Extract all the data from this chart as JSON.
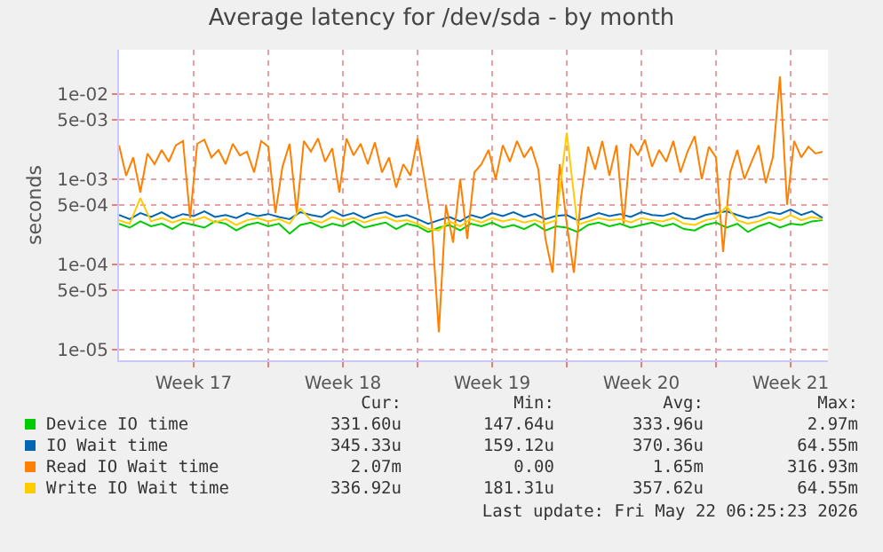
{
  "chart_data": {
    "type": "line",
    "title": "Average latency for /dev/sda - by month",
    "ylabel": "seconds",
    "log": "y",
    "grid": true,
    "legend": "bottom",
    "line_style": "solid",
    "marker": "none",
    "xlim": [
      "2026-04-20T00:00",
      "2026-05-23T06:00"
    ],
    "xticks": [
      {
        "value": "2026-04-23T12:00",
        "label": "Week 17"
      },
      {
        "value": "2026-04-30T12:00",
        "label": "Week 18"
      },
      {
        "value": "2026-05-07T12:00",
        "label": "Week 19"
      },
      {
        "value": "2026-05-14T12:00",
        "label": "Week 20"
      },
      {
        "value": "2026-05-21T12:00",
        "label": "Week 21"
      },
      {
        "value": "2026-04-27",
        "label": null
      },
      {
        "value": "2026-05-04",
        "label": null
      },
      {
        "value": "2026-05-11",
        "label": null
      },
      {
        "value": "2026-05-18",
        "label": null
      }
    ],
    "ylim": [
      7.5e-06,
      0.033
    ],
    "yticks": [
      {
        "value": 0.01,
        "label": "1e-02"
      },
      {
        "value": 0.005,
        "label": "5e-03"
      },
      {
        "value": 0.001,
        "label": "1e-03"
      },
      {
        "value": 0.0005,
        "label": "5e-04"
      },
      {
        "value": 0.0001,
        "label": "1e-04"
      },
      {
        "value": 5e-05,
        "label": "5e-05"
      },
      {
        "value": 1e-05,
        "label": "1e-05"
      }
    ],
    "x": [
      "2026-04-20T00:00",
      "2026-04-20T12:00",
      "2026-04-21T00:00",
      "2026-04-21T12:00",
      "2026-04-22T00:00",
      "2026-04-22T12:00",
      "2026-04-23T00:00",
      "2026-04-23T12:00",
      "2026-04-24T00:00",
      "2026-04-24T12:00",
      "2026-04-25T00:00",
      "2026-04-25T12:00",
      "2026-04-26T00:00",
      "2026-04-26T12:00",
      "2026-04-27T00:00",
      "2026-04-27T12:00",
      "2026-04-28T00:00",
      "2026-04-28T12:00",
      "2026-04-29T00:00",
      "2026-04-29T12:00",
      "2026-04-30T00:00",
      "2026-04-30T12:00",
      "2026-05-01T00:00",
      "2026-05-01T12:00",
      "2026-05-02T00:00",
      "2026-05-02T12:00",
      "2026-05-03T00:00",
      "2026-05-03T12:00",
      "2026-05-04T00:00",
      "2026-05-04T12:00",
      "2026-05-05T00:00",
      "2026-05-05T12:00",
      "2026-05-06T00:00",
      "2026-05-06T12:00",
      "2026-05-07T00:00",
      "2026-05-07T12:00",
      "2026-05-08T00:00",
      "2026-05-08T12:00",
      "2026-05-09T00:00",
      "2026-05-09T12:00",
      "2026-05-10T00:00",
      "2026-05-10T12:00",
      "2026-05-11T00:00",
      "2026-05-11T12:00",
      "2026-05-12T00:00",
      "2026-05-12T12:00",
      "2026-05-13T00:00",
      "2026-05-13T12:00",
      "2026-05-14T00:00",
      "2026-05-14T12:00",
      "2026-05-15T00:00",
      "2026-05-15T12:00",
      "2026-05-16T00:00",
      "2026-05-16T12:00",
      "2026-05-17T00:00",
      "2026-05-17T12:00",
      "2026-05-18T00:00",
      "2026-05-18T12:00",
      "2026-05-19T00:00",
      "2026-05-19T12:00",
      "2026-05-20T00:00",
      "2026-05-20T12:00",
      "2026-05-21T00:00",
      "2026-05-21T12:00",
      "2026-05-22T00:00",
      "2026-05-22T12:00",
      "2026-05-23T00:00"
    ],
    "series": [
      {
        "name": "Device IO time",
        "color": "#00cc00",
        "values": [
          0.0003,
          0.00027,
          0.00032,
          0.00028,
          0.0003,
          0.00026,
          0.00031,
          0.00029,
          0.00027,
          0.00032,
          0.0003,
          0.00025,
          0.00029,
          0.00031,
          0.00028,
          0.0003,
          0.00023,
          0.00029,
          0.00031,
          0.00027,
          0.0003,
          0.00028,
          0.00032,
          0.00027,
          0.00029,
          0.00031,
          0.00026,
          0.0003,
          0.00028,
          0.00024,
          0.00027,
          0.00029,
          0.00025,
          0.0003,
          0.00028,
          0.00031,
          0.00027,
          0.00029,
          0.00026,
          0.0003,
          0.00025,
          0.00028,
          0.00027,
          0.00024,
          0.00029,
          0.00031,
          0.00028,
          0.0003,
          0.00027,
          0.00029,
          0.00031,
          0.00028,
          0.0003,
          0.00026,
          0.00025,
          0.00029,
          0.00031,
          0.00027,
          0.0003,
          0.00024,
          0.00028,
          0.00031,
          0.00027,
          0.0003,
          0.00029,
          0.00032,
          0.00033
        ]
      },
      {
        "name": "IO Wait time",
        "color": "#0066b3",
        "values": [
          0.00038,
          0.00034,
          0.0004,
          0.00036,
          0.00041,
          0.00035,
          0.00039,
          0.00037,
          0.00042,
          0.00036,
          0.00038,
          0.00035,
          0.0004,
          0.00037,
          0.00039,
          0.00036,
          0.00034,
          0.00041,
          0.00038,
          0.00036,
          0.00043,
          0.00037,
          0.0004,
          0.00035,
          0.00039,
          0.00041,
          0.00036,
          0.00038,
          0.00034,
          0.0003,
          0.00033,
          0.00036,
          0.00032,
          0.00038,
          0.00035,
          0.0004,
          0.00037,
          0.00041,
          0.00036,
          0.00039,
          0.00034,
          0.00037,
          0.00038,
          0.00033,
          0.00036,
          0.0004,
          0.00037,
          0.00039,
          0.00036,
          0.00041,
          0.00038,
          0.00037,
          0.0004,
          0.00035,
          0.00034,
          0.00038,
          0.0004,
          0.00042,
          0.00038,
          0.00035,
          0.00037,
          0.00041,
          0.00039,
          0.00044,
          0.00038,
          0.00042,
          0.00035
        ]
      },
      {
        "name": "Read IO Wait time",
        "color": "#ff8000",
        "x": [
          "2026-04-20T00:00",
          "2026-04-20T08:00",
          "2026-04-20T16:00",
          "2026-04-21T00:00",
          "2026-04-21T08:00",
          "2026-04-21T16:00",
          "2026-04-22T00:00",
          "2026-04-22T08:00",
          "2026-04-22T16:00",
          "2026-04-23T00:00",
          "2026-04-23T08:00",
          "2026-04-23T16:00",
          "2026-04-24T00:00",
          "2026-04-24T08:00",
          "2026-04-24T16:00",
          "2026-04-25T00:00",
          "2026-04-25T08:00",
          "2026-04-25T16:00",
          "2026-04-26T00:00",
          "2026-04-26T08:00",
          "2026-04-26T16:00",
          "2026-04-27T00:00",
          "2026-04-27T08:00",
          "2026-04-27T16:00",
          "2026-04-28T00:00",
          "2026-04-28T08:00",
          "2026-04-28T16:00",
          "2026-04-29T00:00",
          "2026-04-29T08:00",
          "2026-04-29T16:00",
          "2026-04-30T00:00",
          "2026-04-30T08:00",
          "2026-04-30T16:00",
          "2026-05-01T00:00",
          "2026-05-01T08:00",
          "2026-05-01T16:00",
          "2026-05-02T00:00",
          "2026-05-02T08:00",
          "2026-05-02T16:00",
          "2026-05-03T00:00",
          "2026-05-03T08:00",
          "2026-05-03T16:00",
          "2026-05-04T00:00",
          "2026-05-04T08:00",
          "2026-05-04T16:00",
          "2026-05-05T00:00",
          "2026-05-05T08:00",
          "2026-05-05T16:00",
          "2026-05-06T00:00",
          "2026-05-06T08:00",
          "2026-05-06T16:00",
          "2026-05-07T00:00",
          "2026-05-07T08:00",
          "2026-05-07T16:00",
          "2026-05-08T00:00",
          "2026-05-08T08:00",
          "2026-05-08T16:00",
          "2026-05-09T00:00",
          "2026-05-09T08:00",
          "2026-05-09T16:00",
          "2026-05-10T00:00",
          "2026-05-10T08:00",
          "2026-05-10T16:00",
          "2026-05-11T00:00",
          "2026-05-11T08:00",
          "2026-05-11T16:00",
          "2026-05-12T00:00",
          "2026-05-12T08:00",
          "2026-05-12T16:00",
          "2026-05-13T00:00",
          "2026-05-13T08:00",
          "2026-05-13T16:00",
          "2026-05-14T00:00",
          "2026-05-14T08:00",
          "2026-05-14T16:00",
          "2026-05-15T00:00",
          "2026-05-15T08:00",
          "2026-05-15T16:00",
          "2026-05-16T00:00",
          "2026-05-16T08:00",
          "2026-05-16T16:00",
          "2026-05-17T00:00",
          "2026-05-17T08:00",
          "2026-05-17T16:00",
          "2026-05-18T00:00",
          "2026-05-18T08:00",
          "2026-05-18T16:00",
          "2026-05-19T00:00",
          "2026-05-19T08:00",
          "2026-05-19T16:00",
          "2026-05-20T00:00",
          "2026-05-20T08:00",
          "2026-05-20T16:00",
          "2026-05-21T00:00",
          "2026-05-21T08:00",
          "2026-05-21T16:00",
          "2026-05-22T00:00",
          "2026-05-22T08:00",
          "2026-05-22T16:00",
          "2026-05-23T00:00"
        ],
        "values": [
          0.0025,
          0.0011,
          0.0018,
          0.0007,
          0.002,
          0.0015,
          0.0022,
          0.0016,
          0.0025,
          0.0028,
          0.00035,
          0.0026,
          0.0029,
          0.0018,
          0.0022,
          0.0015,
          0.0026,
          0.0019,
          0.0021,
          0.0012,
          0.0028,
          0.0024,
          0.0004,
          0.0014,
          0.0026,
          0.0004,
          0.0028,
          0.0021,
          0.003,
          0.0016,
          0.0023,
          0.0007,
          0.003,
          0.0019,
          0.0026,
          0.0015,
          0.0027,
          0.0012,
          0.0018,
          0.0008,
          0.0015,
          0.0011,
          0.003,
          0.001,
          0.0003,
          1.6e-05,
          0.0005,
          0.00018,
          0.001,
          0.0002,
          0.0012,
          0.0015,
          0.0022,
          0.001,
          0.0025,
          0.0016,
          0.0028,
          0.0018,
          0.0024,
          0.0013,
          0.0002,
          8e-05,
          0.0015,
          0.0003,
          8e-05,
          0.0006,
          0.0024,
          0.0013,
          0.0028,
          0.0011,
          0.0025,
          0.0003,
          0.0026,
          0.0019,
          0.0029,
          0.0014,
          0.0022,
          0.0016,
          0.0028,
          0.0012,
          0.0021,
          0.0032,
          0.001,
          0.0024,
          0.0018,
          0.00014,
          0.0012,
          0.0022,
          0.001,
          0.0016,
          0.0025,
          0.0009,
          0.0018,
          0.016,
          0.0005,
          0.0028,
          0.0018,
          0.0024,
          0.002,
          0.0021
        ]
      },
      {
        "name": "Write IO Wait time",
        "color": "#ffcc00",
        "values": [
          0.00033,
          0.0003,
          0.0006,
          0.00032,
          0.00035,
          0.00031,
          0.00034,
          0.00033,
          0.00036,
          0.00031,
          0.00034,
          0.00029,
          0.00033,
          0.00035,
          0.00032,
          0.00034,
          0.0003,
          0.00045,
          0.00033,
          0.00031,
          0.00036,
          0.00033,
          0.00035,
          0.00031,
          0.00034,
          0.00036,
          0.00032,
          0.00033,
          0.0003,
          0.00026,
          0.00025,
          0.00032,
          0.00028,
          0.00034,
          0.00031,
          0.00035,
          0.00032,
          0.00034,
          0.00031,
          0.00033,
          0.0003,
          0.00033,
          0.0035,
          0.00029,
          0.00032,
          0.00035,
          0.00033,
          0.00034,
          0.00031,
          0.00035,
          0.00033,
          0.00032,
          0.00035,
          0.0003,
          0.00029,
          0.00033,
          0.00035,
          0.00048,
          0.00033,
          0.0003,
          0.00032,
          0.00036,
          0.00033,
          0.00038,
          0.00033,
          0.00036,
          0.00034
        ]
      }
    ],
    "annotations": [
      "Cur:",
      "Min:",
      "Avg:",
      "Max:",
      "331.60u",
      "147.64u",
      "333.96u",
      "2.97m",
      "345.33u",
      "159.12u",
      "370.36u",
      "64.55m",
      "2.07m",
      "0.00",
      "1.65m",
      "316.93m",
      "336.92u",
      "181.31u",
      "357.62u",
      "64.55m",
      "Last update: Fri May 22 06:25:23 2026"
    ]
  }
}
